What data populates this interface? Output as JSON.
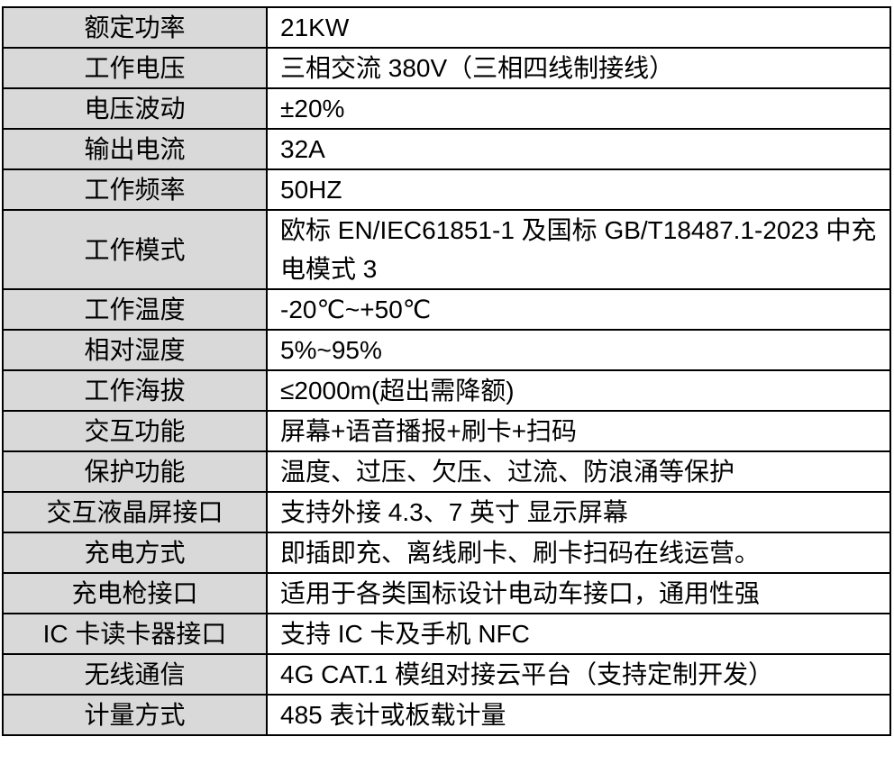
{
  "colors": {
    "label_bg": "#d9d9d9",
    "value_bg": "#ffffff",
    "border": "#000000",
    "text": "#000000"
  },
  "table": {
    "rows": [
      {
        "label": "额定功率",
        "value": "21KW"
      },
      {
        "label": "工作电压",
        "value": "三相交流 380V（三相四线制接线）"
      },
      {
        "label": "电压波动",
        "value": "±20%"
      },
      {
        "label": "输出电流",
        "value": "32A"
      },
      {
        "label": "工作频率",
        "value": "50HZ"
      },
      {
        "label": "工作模式",
        "value": "欧标 EN/IEC61851-1 及国标 GB/T18487.1-2023 中充电模式 3"
      },
      {
        "label": "工作温度",
        "value": "-20℃~+50℃"
      },
      {
        "label": "相对湿度",
        "value": "5%~95%"
      },
      {
        "label": "工作海拔",
        "value": "≤2000m(超出需降额)"
      },
      {
        "label": "交互功能",
        "value": "屏幕+语音播报+刷卡+扫码"
      },
      {
        "label": "保护功能",
        "value": "温度、过压、欠压、过流、防浪涌等保护"
      },
      {
        "label": "交互液晶屏接口",
        "value": "支持外接 4.3、7 英寸 显示屏幕"
      },
      {
        "label": "充电方式",
        "value": "即插即充、离线刷卡、刷卡扫码在线运营。"
      },
      {
        "label": "充电枪接口",
        "value": "适用于各类国标设计电动车接口，通用性强"
      },
      {
        "label": "IC 卡读卡器接口",
        "value": "支持 IC 卡及手机 NFC"
      },
      {
        "label": "无线通信",
        "value": "4G CAT.1 模组对接云平台（支持定制开发）"
      },
      {
        "label": "计量方式",
        "value": "485 表计或板载计量"
      }
    ]
  }
}
